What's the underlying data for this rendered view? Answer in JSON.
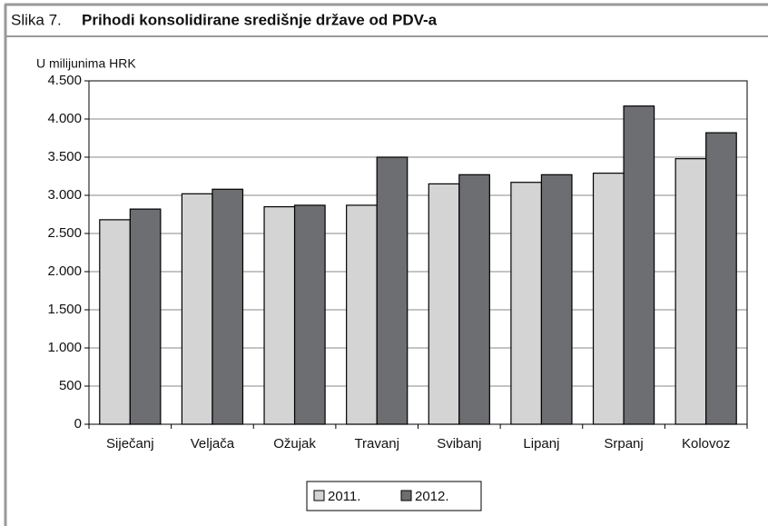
{
  "chart_data": {
    "type": "bar",
    "figure_label": "Slika 7.",
    "title": "Prihodi konsolidirane središnje države od PDV-a",
    "y_label": "U milijunima HRK",
    "categories": [
      "Siječanj",
      "Veljača",
      "Ožujak",
      "Travanj",
      "Svibanj",
      "Lipanj",
      "Srpanj",
      "Kolovoz"
    ],
    "series": [
      {
        "name": "2011.",
        "color": "#d4d4d4",
        "values": [
          2680,
          3020,
          2850,
          2870,
          3150,
          3170,
          3290,
          3480
        ]
      },
      {
        "name": "2012.",
        "color": "#6d6e71",
        "values": [
          2820,
          3080,
          2870,
          3500,
          3270,
          3270,
          4170,
          3820
        ]
      }
    ],
    "ylim": [
      0,
      4500
    ],
    "yticks": [
      0,
      500,
      {
        "value": 1000,
        "label": "1.000"
      },
      {
        "value": 1500,
        "label": "1.500"
      },
      {
        "value": 2000,
        "label": "2.000"
      },
      {
        "value": 2500,
        "label": "2.500"
      },
      {
        "value": 3000,
        "label": "3.000"
      },
      {
        "value": 3500,
        "label": "3.500"
      },
      {
        "value": 4000,
        "label": "4.000"
      },
      {
        "value": 4500,
        "label": "4.500"
      }
    ],
    "grid": true,
    "legend": "bottom"
  }
}
